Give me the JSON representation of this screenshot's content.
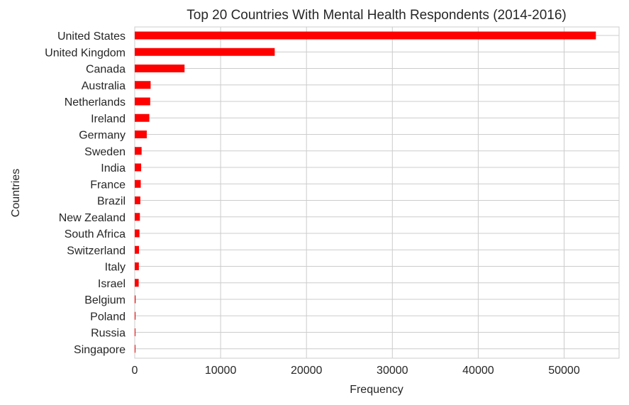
{
  "chart_data": {
    "type": "bar",
    "orientation": "horizontal",
    "title": "Top 20 Countries With Mental Health Respondents (2014-2016)",
    "xlabel": "Frequency",
    "ylabel": "Countries",
    "categories": [
      "United States",
      "United Kingdom",
      "Canada",
      "Australia",
      "Netherlands",
      "Ireland",
      "Germany",
      "Sweden",
      "India",
      "France",
      "Brazil",
      "New Zealand",
      "South Africa",
      "Switzerland",
      "Italy",
      "Israel",
      "Belgium",
      "Poland",
      "Russia",
      "Singapore"
    ],
    "values": [
      53700,
      16300,
      5800,
      1850,
      1800,
      1700,
      1400,
      800,
      750,
      700,
      650,
      600,
      550,
      500,
      480,
      460,
      100,
      90,
      80,
      70
    ],
    "xticks": [
      0,
      10000,
      20000,
      30000,
      40000,
      50000
    ],
    "xtick_labels": [
      "0",
      "10000",
      "20000",
      "30000",
      "40000",
      "50000"
    ],
    "xlim": [
      0,
      56400
    ],
    "grid": true,
    "bar_color": "#ff0000"
  }
}
